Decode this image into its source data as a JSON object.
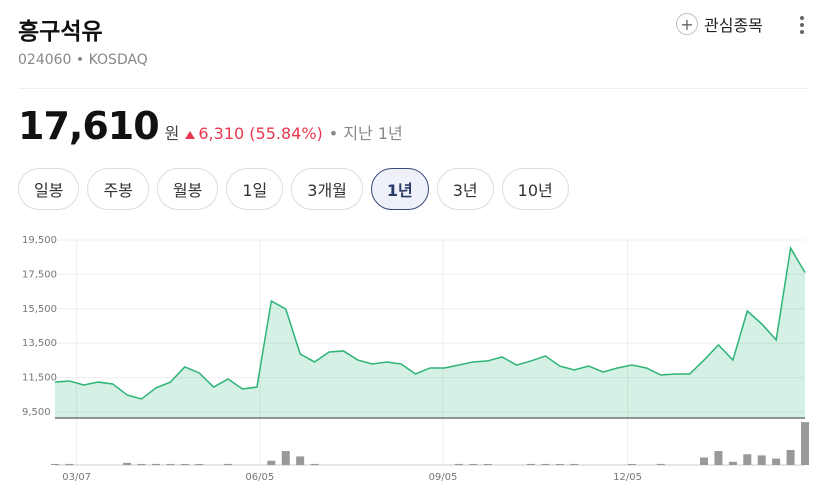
{
  "header": {
    "name": "흥구석유",
    "code": "024060",
    "market": "KOSDAQ",
    "watch_label": "관심종목"
  },
  "price": {
    "value": "17,610",
    "unit": "원",
    "change": "6,310",
    "change_pct": "(55.84%)",
    "period": "지난 1년"
  },
  "tabs": [
    "일봉",
    "주봉",
    "월봉",
    "1일",
    "3개월",
    "1년",
    "3년",
    "10년"
  ],
  "active_tab": 5,
  "chart_data": {
    "type": "area",
    "series": [
      {
        "name": "price",
        "color": "#2db477",
        "values": [
          11244,
          11300,
          11070,
          11240,
          11130,
          10490,
          10260,
          10900,
          11240,
          12120,
          11770,
          10950,
          11420,
          10840,
          10950,
          15950,
          15490,
          12870,
          12410,
          12990,
          13050,
          12520,
          12290,
          12410,
          12290,
          11710,
          12060,
          12060,
          12230,
          12410,
          12470,
          12700,
          12230,
          12470,
          12760,
          12170,
          11940,
          12170,
          11830,
          12060,
          12230,
          12060,
          11650,
          11710,
          11710,
          12520,
          13400,
          12520,
          15370,
          14620,
          13690,
          19030,
          17610
        ]
      }
    ],
    "volume": {
      "color": "#999999",
      "values": [
        1,
        1,
        0,
        0,
        0,
        2,
        1,
        1,
        1,
        1,
        1,
        0,
        1,
        0,
        0,
        4,
        13,
        8,
        1,
        0,
        0,
        0,
        0,
        0,
        0,
        0,
        0,
        0,
        1,
        1,
        1,
        0,
        0,
        1,
        1,
        1,
        1,
        0,
        0,
        0,
        1,
        0,
        1,
        0,
        0,
        7,
        13,
        3,
        10,
        9,
        6,
        14,
        40
      ]
    },
    "volume_ylim": [
      0,
      42
    ],
    "xlim": [
      0,
      52
    ],
    "xticks": [
      {
        "value": 1.5,
        "label": "03/07"
      },
      {
        "value": 14.2,
        "label": "06/05"
      },
      {
        "value": 26.9,
        "label": "09/05"
      },
      {
        "value": 39.7,
        "label": "12/05"
      }
    ],
    "ylim": [
      9500,
      19500
    ],
    "yticks": [
      {
        "value": 9500,
        "label": "9,500"
      },
      {
        "value": 11500,
        "label": "11,500"
      },
      {
        "value": 13500,
        "label": "13,500"
      },
      {
        "value": 15500,
        "label": "15,500"
      },
      {
        "value": 17500,
        "label": "17,500"
      },
      {
        "value": 19500,
        "label": "19,500"
      }
    ],
    "grid": true
  }
}
